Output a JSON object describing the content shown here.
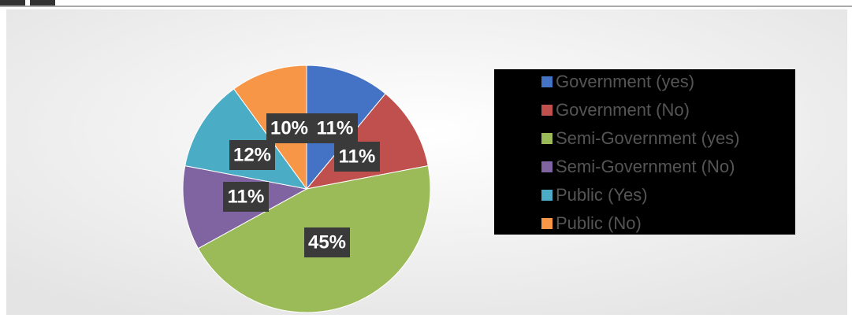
{
  "chart_data": {
    "type": "pie",
    "categories": [
      "Government (yes)",
      "Government (No)",
      "Semi-Government (yes)",
      "Semi-Government (No)",
      "Public (Yes)",
      "Public (No)"
    ],
    "values": [
      11,
      11,
      45,
      11,
      12,
      10
    ],
    "value_labels": [
      "11%",
      "11%",
      "45%",
      "11%",
      "12%",
      "10%"
    ],
    "colors": [
      "#4472c4",
      "#c0504d",
      "#9bbb59",
      "#8064a2",
      "#4bacc6",
      "#f79646"
    ],
    "legend": "right"
  }
}
